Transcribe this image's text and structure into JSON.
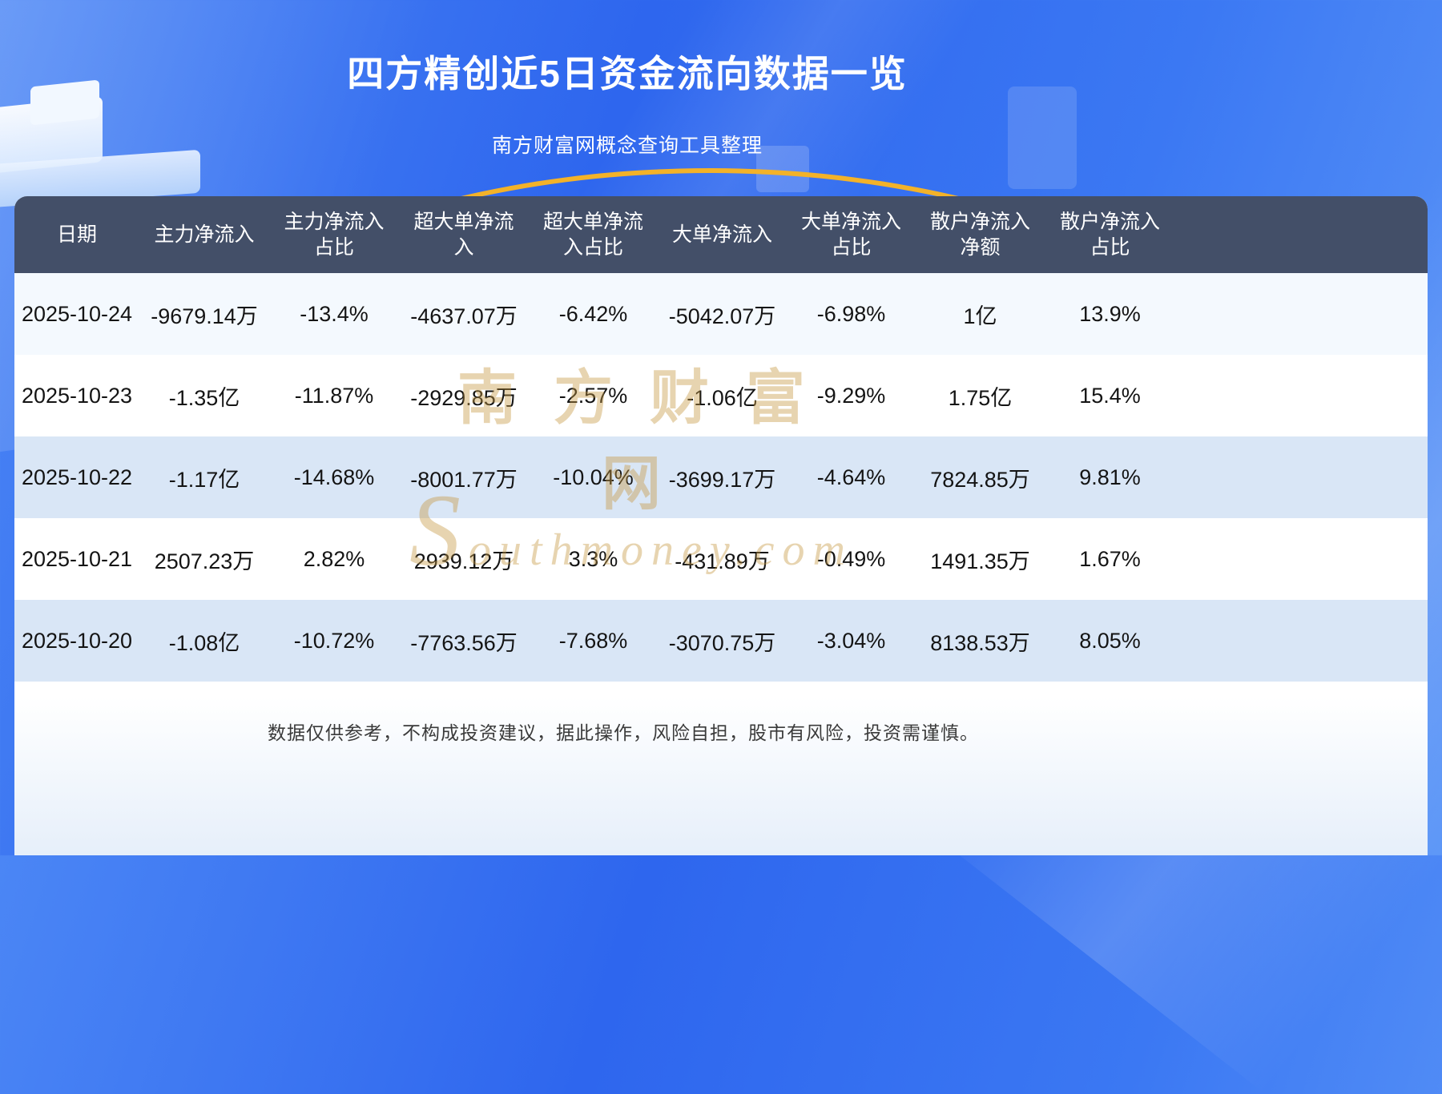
{
  "page": {
    "title": "四方精创近5日资金流向数据一览",
    "subtitle": "南方财富网概念查询工具整理",
    "disclaimer": "数据仅供参考，不构成投资建议，据此操作，风险自担，股市有风险，投资需谨慎。",
    "watermark_cn": "南方财富网",
    "watermark_en": "Southmoney.com"
  },
  "colors": {
    "background_blue": "#2e66ee",
    "header_bg": "#434f68",
    "zebra_row": "#d9e6f6",
    "accent_gold": "#f3b229",
    "watermark_gold": "#c59842"
  },
  "table": {
    "headers": [
      "日期",
      "主力净流入",
      "主力净流入\n占比",
      "超大单净流\n入",
      "超大单净流\n入占比",
      "大单净流入",
      "大单净流入\n占比",
      "散户净流入\n净额",
      "散户净流入\n占比"
    ],
    "rows": [
      [
        "2025-10-24",
        "-9679.14万",
        "-13.4%",
        "-4637.07万",
        "-6.42%",
        "-5042.07万",
        "-6.98%",
        "1亿",
        "13.9%"
      ],
      [
        "2025-10-23",
        "-1.35亿",
        "-11.87%",
        "-2929.85万",
        "-2.57%",
        "-1.06亿",
        "-9.29%",
        "1.75亿",
        "15.4%"
      ],
      [
        "2025-10-22",
        "-1.17亿",
        "-14.68%",
        "-8001.77万",
        "-10.04%",
        "-3699.17万",
        "-4.64%",
        "7824.85万",
        "9.81%"
      ],
      [
        "2025-10-21",
        "2507.23万",
        "2.82%",
        "2939.12万",
        "3.3%",
        "-431.89万",
        "-0.49%",
        "1491.35万",
        "1.67%"
      ],
      [
        "2025-10-20",
        "-1.08亿",
        "-10.72%",
        "-7763.56万",
        "-7.68%",
        "-3070.75万",
        "-3.04%",
        "8138.53万",
        "8.05%"
      ]
    ]
  },
  "chart_data": {
    "type": "table",
    "title": "四方精创近5日资金流向数据一览",
    "subtitle": "南方财富网概念查询工具整理",
    "columns": [
      "日期",
      "主力净流入",
      "主力净流入占比",
      "超大单净流入",
      "超大单净流入占比",
      "大单净流入",
      "大单净流入占比",
      "散户净流入净额",
      "散户净流入占比"
    ],
    "rows": [
      [
        "2025-10-24",
        "-9679.14万",
        "-13.4%",
        "-4637.07万",
        "-6.42%",
        "-5042.07万",
        "-6.98%",
        "1亿",
        "13.9%"
      ],
      [
        "2025-10-23",
        "-1.35亿",
        "-11.87%",
        "-2929.85万",
        "-2.57%",
        "-1.06亿",
        "-9.29%",
        "1.75亿",
        "15.4%"
      ],
      [
        "2025-10-22",
        "-1.17亿",
        "-14.68%",
        "-8001.77万",
        "-10.04%",
        "-3699.17万",
        "-4.64%",
        "7824.85万",
        "9.81%"
      ],
      [
        "2025-10-21",
        "2507.23万",
        "2.82%",
        "2939.12万",
        "3.3%",
        "-431.89万",
        "-0.49%",
        "1491.35万",
        "1.67%"
      ],
      [
        "2025-10-20",
        "-1.08亿",
        "-10.72%",
        "-7763.56万",
        "-7.68%",
        "-3070.75万",
        "-3.04%",
        "8138.53万",
        "8.05%"
      ]
    ]
  }
}
